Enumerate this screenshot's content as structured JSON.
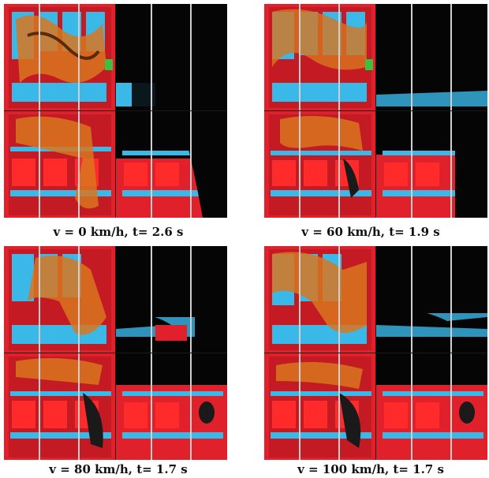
{
  "figure": {
    "panels": [
      {
        "caption": "v = 0 km/h, t= 2.6 s"
      },
      {
        "caption": "v = 60 km/h, t= 1.9 s"
      },
      {
        "caption": "v = 80 km/h, t= 1.7 s"
      },
      {
        "caption": "v = 100 km/h, t= 1.7 s"
      }
    ],
    "colors": {
      "wall_red": "#e0202a",
      "seat_blue": "#3ab8e8",
      "smoke_orange": "#d9761e",
      "frame_gray": "#cfcfcf",
      "dark": "#050505"
    }
  }
}
